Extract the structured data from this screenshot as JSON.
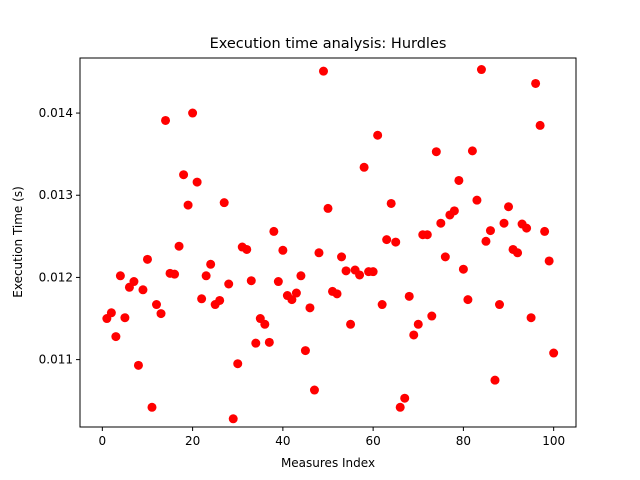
{
  "chart_data": {
    "type": "scatter",
    "title": "Execution time analysis: Hurdles",
    "xlabel": "Measures Index",
    "ylabel": "Execution Time (s)",
    "xlim": [
      -4.95,
      104.95
    ],
    "ylim": [
      0.01018,
      0.01467
    ],
    "x_ticks": [
      0,
      20,
      40,
      60,
      80,
      100
    ],
    "x_tick_labels": [
      "0",
      "20",
      "40",
      "60",
      "80",
      "100"
    ],
    "y_ticks": [
      0.011,
      0.012,
      0.013,
      0.014
    ],
    "y_tick_labels": [
      "0.011",
      "0.012",
      "0.013",
      "0.014"
    ],
    "grid": false,
    "legend": "none",
    "marker_color": "#ff0000",
    "series": [
      {
        "x": [
          1,
          2,
          3,
          4,
          5,
          6,
          7,
          8,
          9,
          10,
          11,
          12,
          13,
          14,
          15,
          16,
          17,
          18,
          19,
          20,
          21,
          22,
          23,
          24,
          25,
          26,
          27,
          28,
          29,
          30,
          31,
          32,
          33,
          34,
          35,
          36,
          37,
          38,
          39,
          40,
          41,
          42,
          43,
          44,
          45,
          46,
          47,
          48,
          49,
          50,
          51,
          52,
          53,
          54,
          55,
          56,
          57,
          58,
          59,
          60,
          61,
          62,
          63,
          64,
          65,
          66,
          67,
          68,
          69,
          70,
          71,
          72,
          73,
          74,
          75,
          76,
          77,
          78,
          79,
          80,
          81,
          82,
          83,
          84,
          85,
          86,
          87,
          88,
          89,
          90,
          91,
          92,
          93,
          94,
          95,
          96,
          97,
          98,
          99,
          100
        ],
        "y": [
          0.0115,
          0.01157,
          0.01128,
          0.01202,
          0.01151,
          0.01188,
          0.01195,
          0.01093,
          0.01185,
          0.01222,
          0.01042,
          0.01167,
          0.01156,
          0.01391,
          0.01205,
          0.01204,
          0.01238,
          0.01325,
          0.01288,
          0.014,
          0.01316,
          0.01174,
          0.01202,
          0.01216,
          0.01167,
          0.01172,
          0.01291,
          0.01192,
          0.01028,
          0.01095,
          0.01237,
          0.01234,
          0.01196,
          0.0112,
          0.0115,
          0.01143,
          0.01121,
          0.01256,
          0.01195,
          0.01233,
          0.01178,
          0.01173,
          0.01181,
          0.01202,
          0.01111,
          0.01163,
          0.01063,
          0.0123,
          0.01451,
          0.01284,
          0.01183,
          0.0118,
          0.01225,
          0.01208,
          0.01143,
          0.01209,
          0.01203,
          0.01334,
          0.01207,
          0.01207,
          0.01373,
          0.01167,
          0.01246,
          0.0129,
          0.01243,
          0.01042,
          0.01053,
          0.01177,
          0.0113,
          0.01143,
          0.01252,
          0.01252,
          0.01153,
          0.01353,
          0.01266,
          0.01225,
          0.01276,
          0.01281,
          0.01318,
          0.0121,
          0.01173,
          0.01354,
          0.01294,
          0.01453,
          0.01244,
          0.01257,
          0.01075,
          0.01167,
          0.01266,
          0.01286,
          0.01234,
          0.0123,
          0.01265,
          0.0126,
          0.01151,
          0.01436,
          0.01385,
          0.01256,
          0.0122,
          0.01108
        ]
      }
    ]
  }
}
